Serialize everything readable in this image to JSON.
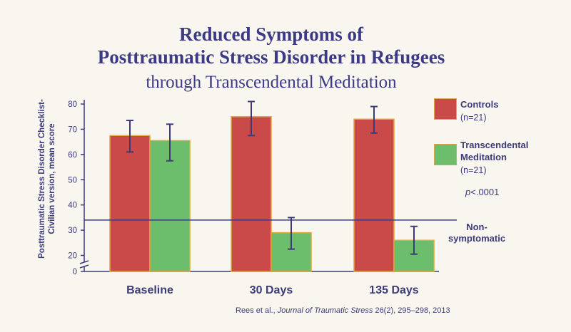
{
  "title_line1": "Reduced Symptoms of",
  "title_line2": "Posttraumatic Stress Disorder in Refugees",
  "subtitle": "through Transcendental Meditation",
  "legend": [
    {
      "name": "Controls",
      "n": "(n=21)",
      "color": "#c94a48"
    },
    {
      "name_line1": "Transcendental",
      "name_line2": "Meditation",
      "n": "(n=21)",
      "color": "#6cbd6c"
    }
  ],
  "p_value": {
    "symbol": "p",
    "text": "<.0001"
  },
  "threshold_label": {
    "line1": "Non-",
    "line2": "symptomatic"
  },
  "citation": {
    "authors": "Rees et al., ",
    "journal": "Journal of Traumatic Stress",
    "details": " 26(2), 295–298, 2013"
  },
  "colors": {
    "bar_border": "#e0a93a",
    "axis": "#3c3a78",
    "error_bar": "#3c3a78"
  },
  "chart_data": {
    "type": "bar",
    "categories": [
      "Baseline",
      "30 Days",
      "135 Days"
    ],
    "series": [
      {
        "name": "Controls",
        "values": [
          67.5,
          75,
          74
        ],
        "error_low": [
          61,
          67.5,
          68.5
        ],
        "error_high": [
          73.5,
          81,
          79
        ]
      },
      {
        "name": "Transcendental Meditation",
        "values": [
          65.5,
          29,
          26
        ],
        "error_low": [
          57.5,
          22.5,
          20.5
        ],
        "error_high": [
          72,
          35,
          31.5
        ]
      }
    ],
    "ylabel_line1": "Posttraumatic Stress Disorder Checklist-",
    "ylabel_line2": "Civilian version, mean score",
    "yticks": [
      0,
      20,
      30,
      40,
      50,
      60,
      70,
      80
    ],
    "ylim": [
      0,
      80
    ],
    "axis_break": true,
    "threshold": 34,
    "grid": false,
    "legend_position": "right"
  }
}
